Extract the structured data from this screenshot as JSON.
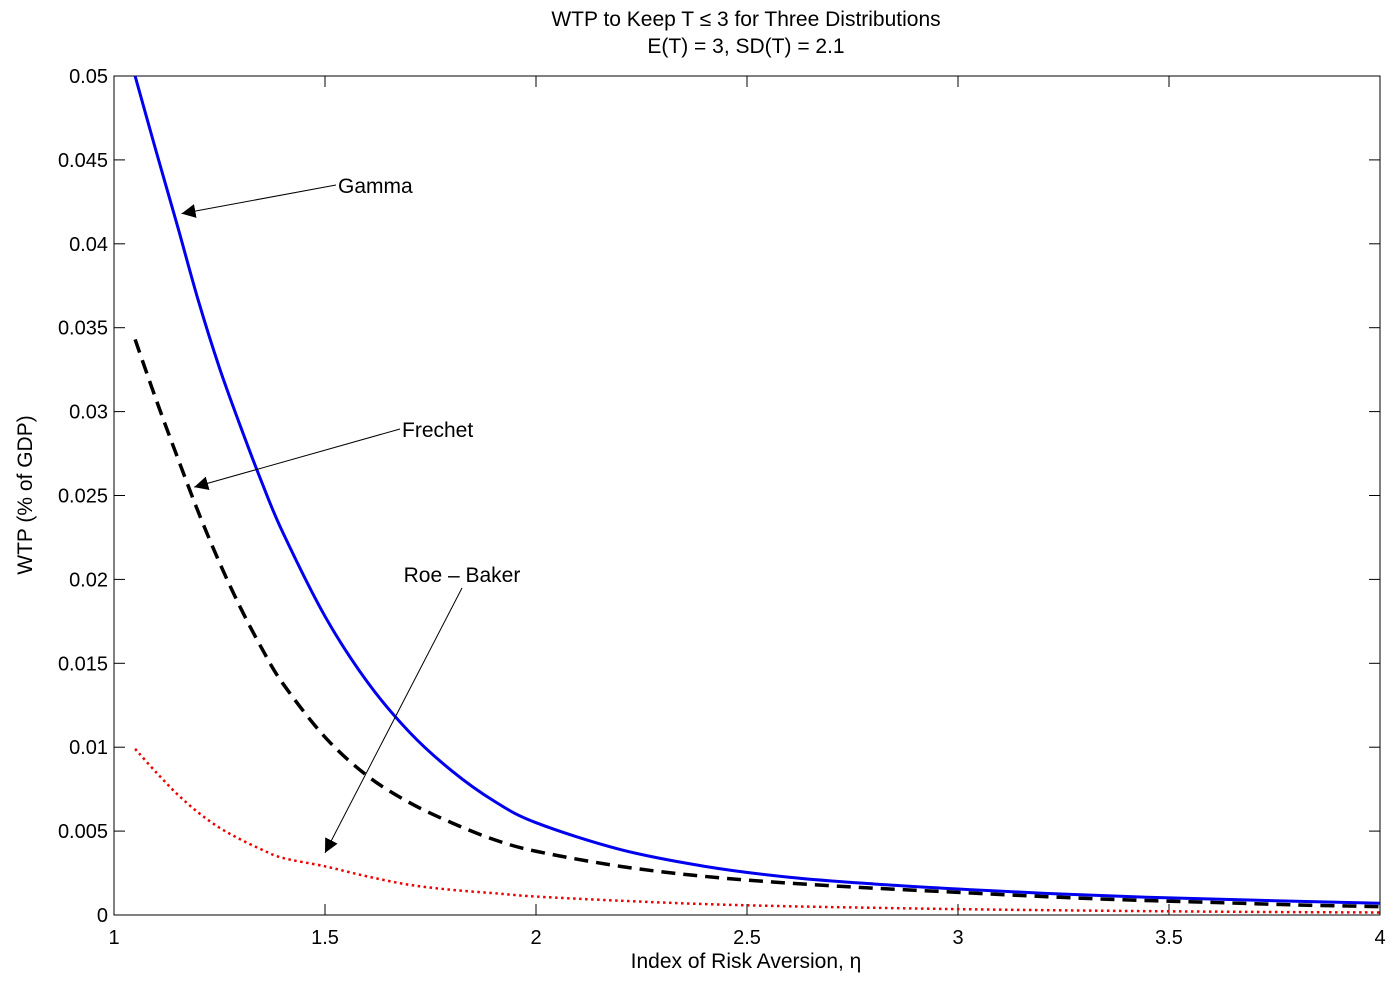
{
  "chart_data": {
    "type": "line",
    "title": "WTP to Keep T ≤ 3 for Three Distributions",
    "subtitle": "E(T) = 3, SD(T) = 2.1",
    "xlabel": "Index of Risk Aversion, η",
    "ylabel": "WTP (% of GDP)",
    "xlim": [
      1,
      4
    ],
    "ylim": [
      0,
      0.05
    ],
    "xticks": [
      1,
      1.5,
      2,
      2.5,
      3,
      3.5,
      4
    ],
    "xtick_labels": [
      "1",
      "1.5",
      "2",
      "2.5",
      "3",
      "3.5",
      "4"
    ],
    "yticks": [
      0,
      0.005,
      0.01,
      0.015,
      0.02,
      0.025,
      0.03,
      0.035,
      0.04,
      0.045,
      0.05
    ],
    "ytick_labels": [
      "0",
      "0.005",
      "0.01",
      "0.015",
      "0.02",
      "0.025",
      "0.03",
      "0.035",
      "0.04",
      "0.045",
      "0.05"
    ],
    "grid": false,
    "legend": "none",
    "series": [
      {
        "style": "solid",
        "color": "#0000ee",
        "x": [
          1.05,
          1.1,
          1.15,
          1.2,
          1.25,
          1.3,
          1.35,
          1.4,
          1.5,
          1.6,
          1.7,
          1.8,
          1.9,
          2.0,
          2.2,
          2.4,
          2.6,
          2.8,
          3.0,
          3.2,
          3.4,
          3.6,
          3.8,
          4.0
        ],
        "y": [
          0.05,
          0.0455,
          0.0411,
          0.0366,
          0.0326,
          0.0291,
          0.0258,
          0.0228,
          0.0178,
          0.0139,
          0.0109,
          0.0086,
          0.0068,
          0.0055,
          0.0039,
          0.0029,
          0.00225,
          0.00185,
          0.00155,
          0.0013,
          0.0011,
          0.00095,
          0.00082,
          0.0007
        ]
      },
      {
        "style": "dashed",
        "color": "#000000",
        "x": [
          1.05,
          1.1,
          1.15,
          1.2,
          1.25,
          1.3,
          1.35,
          1.4,
          1.5,
          1.6,
          1.7,
          1.8,
          1.9,
          2.0,
          2.2,
          2.4,
          2.6,
          2.8,
          3.0,
          3.2,
          3.4,
          3.6,
          3.8,
          4.0
        ],
        "y": [
          0.0343,
          0.0307,
          0.0273,
          0.024,
          0.021,
          0.0183,
          0.0159,
          0.0138,
          0.0106,
          0.0083,
          0.0067,
          0.0055,
          0.0045,
          0.0038,
          0.0029,
          0.0023,
          0.0019,
          0.0016,
          0.00135,
          0.0011,
          0.0009,
          0.00075,
          0.0006,
          0.0005
        ]
      },
      {
        "style": "dotted",
        "color": "#ee0000",
        "x": [
          1.05,
          1.1,
          1.15,
          1.2,
          1.25,
          1.3,
          1.35,
          1.4,
          1.5,
          1.6,
          1.7,
          1.8,
          1.9,
          2.0,
          2.2,
          2.4,
          2.6,
          2.8,
          3.0,
          3.2,
          3.4,
          3.6,
          3.8,
          4.0
        ],
        "y": [
          0.0099,
          0.0085,
          0.0072,
          0.0061,
          0.0052,
          0.0045,
          0.0039,
          0.0034,
          0.0029,
          0.0023,
          0.0018,
          0.0015,
          0.0013,
          0.0011,
          0.00085,
          0.00065,
          0.00052,
          0.00043,
          0.00035,
          0.00029,
          0.00024,
          0.0002,
          0.00017,
          0.00015
        ]
      }
    ],
    "annotations": [
      {
        "text": "Gamma",
        "target_x": 1.16,
        "target_y": 0.0418
      },
      {
        "text": "Frechet",
        "target_x": 1.19,
        "target_y": 0.0255
      },
      {
        "text": "Roe – Baker",
        "target_x": 1.5,
        "target_y": 0.0037
      }
    ]
  }
}
